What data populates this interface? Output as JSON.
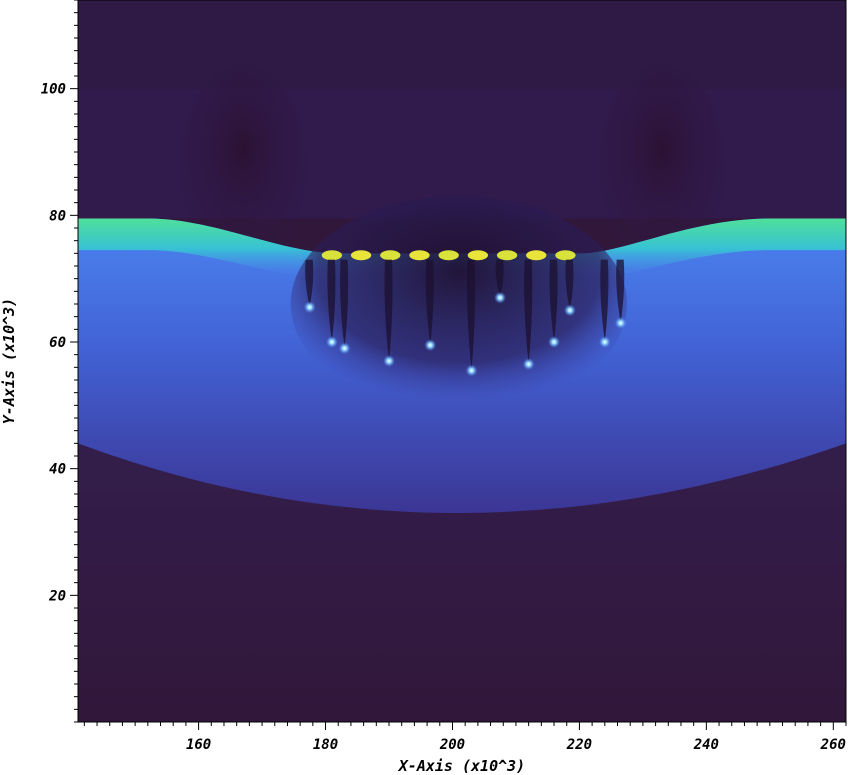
{
  "chart_data": {
    "type": "heatmap",
    "title": "",
    "xlabel": "X-Axis (x10^3)",
    "ylabel": "Y-Axis (x10^3)",
    "xlim": [
      141,
      262
    ],
    "ylim": [
      0,
      114
    ],
    "x_major_ticks": [
      160,
      180,
      200,
      220,
      240,
      260
    ],
    "y_major_ticks": [
      20,
      40,
      60,
      80,
      100
    ],
    "x_tick_labels": [
      "160",
      "180",
      "200",
      "220",
      "240",
      "260"
    ],
    "y_tick_labels": [
      "20",
      "40",
      "60",
      "80",
      "100"
    ],
    "minor_tick_step": 2,
    "colormap": [
      "#2f1537",
      "#3b2a6e",
      "#4152c9",
      "#4b84f0",
      "#37c2d4",
      "#4fe09a",
      "#f6e61f"
    ],
    "background_color": "#31173a",
    "features": {
      "surface_level_y": 79.5,
      "basin_x_range": [
        179,
        223
      ],
      "basin_bottom_y": 74,
      "plume_tips": [
        {
          "x": 177.5,
          "y": 65.5
        },
        {
          "x": 181,
          "y": 60
        },
        {
          "x": 183,
          "y": 59
        },
        {
          "x": 190,
          "y": 57
        },
        {
          "x": 196.5,
          "y": 59.5
        },
        {
          "x": 203,
          "y": 55.5
        },
        {
          "x": 207.5,
          "y": 67
        },
        {
          "x": 212,
          "y": 56.5
        },
        {
          "x": 216,
          "y": 60
        },
        {
          "x": 218.5,
          "y": 65
        },
        {
          "x": 224,
          "y": 60
        },
        {
          "x": 226.5,
          "y": 63
        }
      ]
    }
  }
}
